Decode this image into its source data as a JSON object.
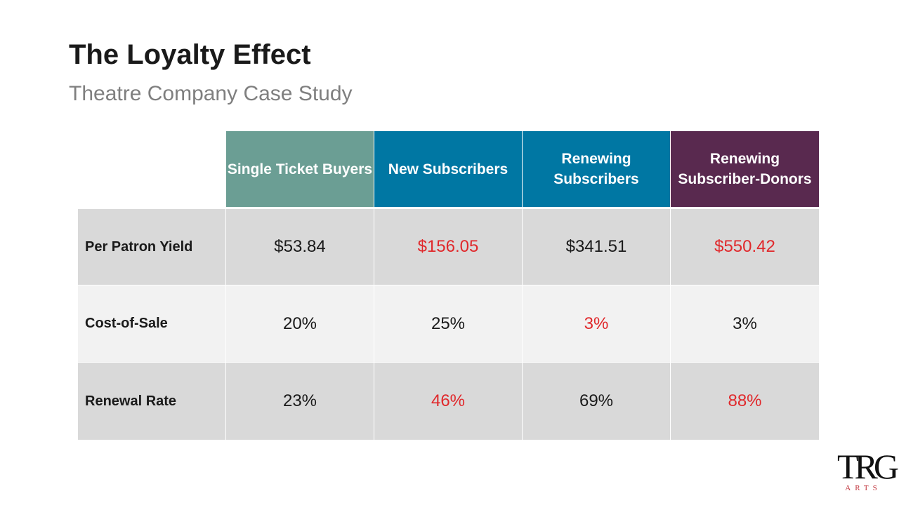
{
  "title": "The Loyalty Effect",
  "subtitle": "Theatre Company Case Study",
  "colors": {
    "single": "#6b9e94",
    "new": "#0077a3",
    "renewing": "#0077a3",
    "donors": "#59294f",
    "row_dark": "#d9d9d9",
    "row_light": "#f2f2f2",
    "highlight": "#e0282b"
  },
  "table": {
    "columns": [
      "Single Ticket Buyers",
      "New Subscribers",
      "Renewing Subscribers",
      "Renewing Subscriber-Donors"
    ],
    "rows": [
      {
        "label": "Per Patron Yield",
        "values": [
          "$53.84",
          "$156.05",
          "$341.51",
          "$550.42"
        ],
        "highlighted": [
          false,
          true,
          false,
          true
        ]
      },
      {
        "label": "Cost-of-Sale",
        "values": [
          "20%",
          "25%",
          "3%",
          "3%"
        ],
        "highlighted": [
          false,
          false,
          true,
          false
        ]
      },
      {
        "label": "Renewal Rate",
        "values": [
          "23%",
          "46%",
          "69%",
          "88%"
        ],
        "highlighted": [
          false,
          true,
          false,
          true
        ]
      }
    ]
  },
  "logo": {
    "mark": "TRG",
    "text": "ARTS"
  }
}
